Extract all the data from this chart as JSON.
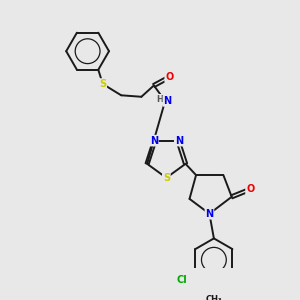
{
  "background_color": "#e8e8e8",
  "bond_color": "#1a1a1a",
  "atom_colors": {
    "S": "#cccc00",
    "N": "#0000ee",
    "O": "#ee0000",
    "H": "#555555",
    "Cl": "#00aa00",
    "C": "#1a1a1a"
  },
  "lw": 1.4
}
